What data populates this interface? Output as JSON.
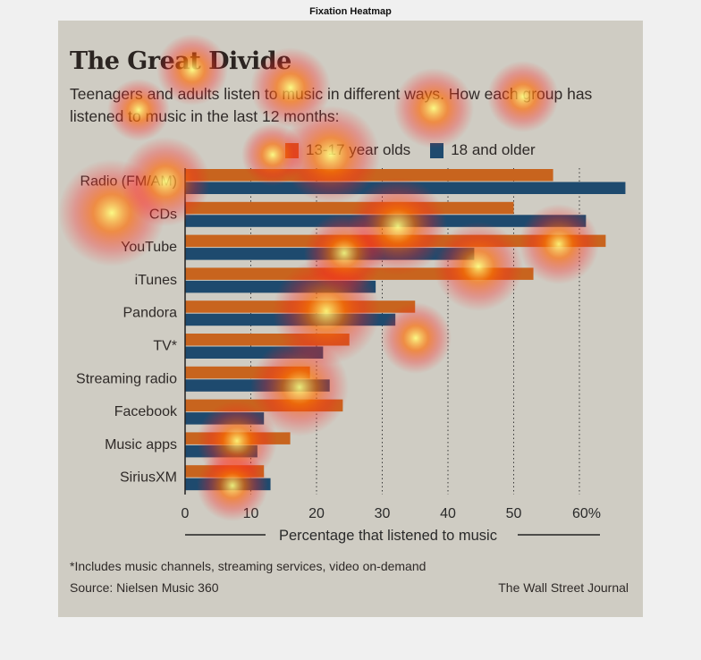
{
  "figure": {
    "title": "Fixation Heatmap"
  },
  "infographic": {
    "headline": "The Great Divide",
    "subheadline": "Teenagers and adults listen to music in different ways. How each group has listened to music in the last 12 months:",
    "footnote": "*Includes music channels, streaming services, video on-demand",
    "source": "Source: Nielsen Music 360",
    "credit": "The Wall Street Journal"
  },
  "colors": {
    "teen": "#c8641e",
    "adult": "#1e4a6e",
    "panel": "#cfccc3",
    "heat_hot": "#ffff80",
    "heat_mid": "#ff6a00",
    "heat_edge": "#ff2020"
  },
  "chart_data": {
    "type": "bar",
    "orientation": "horizontal",
    "categories": [
      "Radio (FM/AM)",
      "CDs",
      "YouTube",
      "iTunes",
      "Pandora",
      "TV*",
      "Streaming radio",
      "Facebook",
      "Music apps",
      "SiriusXM"
    ],
    "series": [
      {
        "name": "13-17 year olds",
        "values": [
          56,
          50,
          64,
          53,
          35,
          25,
          19,
          24,
          16,
          12
        ]
      },
      {
        "name": "18 and older",
        "values": [
          67,
          61,
          44,
          29,
          32,
          21,
          22,
          12,
          11,
          13
        ]
      }
    ],
    "xlabel": "Percentage that listened to music",
    "xlim": [
      0,
      67
    ],
    "xticks": [
      0,
      10,
      20,
      30,
      40,
      50,
      60
    ],
    "xtick_labels": [
      "0",
      "10",
      "20",
      "30",
      "40",
      "50",
      "60%"
    ],
    "grid": "vertical dotted",
    "legend": "top"
  }
}
